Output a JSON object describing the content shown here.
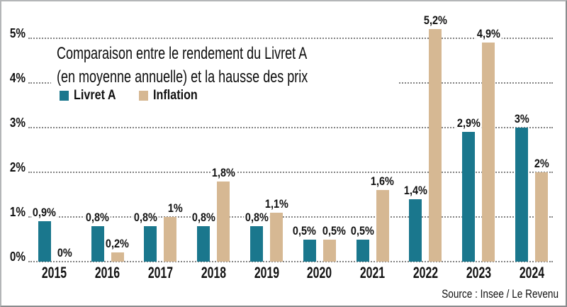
{
  "chart": {
    "title_line1": "Comparaison entre le rendement du Livret A",
    "title_line2": "(en moyenne annuelle) et la hausse des prix",
    "source": "Source : Insee / Le Revenu",
    "colors": {
      "livret_a": "#1a778d",
      "inflation": "#d6b893",
      "grid": "#828282",
      "text": "#111111",
      "frame_border": "#9b9da0",
      "background": "#ffffff"
    }
  },
  "chart_data": {
    "type": "bar",
    "title": "Comparaison entre le rendement du Livret A (en moyenne annuelle) et la hausse des prix",
    "categories": [
      "2015",
      "2016",
      "2017",
      "2018",
      "2019",
      "2020",
      "2021",
      "2022",
      "2023",
      "2024"
    ],
    "series": [
      {
        "name": "Livret A",
        "color": "#1a778d",
        "values": [
          0.9,
          0.8,
          0.8,
          0.8,
          0.8,
          0.5,
          0.5,
          1.4,
          2.9,
          3.0
        ],
        "labels": [
          "0,9%",
          "0,8%",
          "0,8%",
          "0,8%",
          "0,8%",
          "0,5%",
          "0,5%",
          "1,4%",
          "2,9%",
          "3%"
        ]
      },
      {
        "name": "Inflation",
        "color": "#d6b893",
        "values": [
          0,
          0.2,
          1.0,
          1.8,
          1.1,
          0.5,
          1.6,
          5.2,
          4.9,
          2.0
        ],
        "labels": [
          "0%",
          "0,2%",
          "1%",
          "1,8%",
          "1,1%",
          "0,5%",
          "1,6%",
          "5,2%",
          "4,9%",
          "2%"
        ]
      }
    ],
    "xlabel": "",
    "ylabel": "",
    "yticks": [
      0,
      1,
      2,
      3,
      4,
      5
    ],
    "ytick_labels": [
      "0%",
      "1%",
      "2%",
      "3%",
      "4%",
      "5%"
    ],
    "ylim": [
      0,
      5.5
    ],
    "grid": "horizontal-dotted",
    "legend_position": "top-left-under-title",
    "source": "Source : Insee / Le Revenu"
  }
}
